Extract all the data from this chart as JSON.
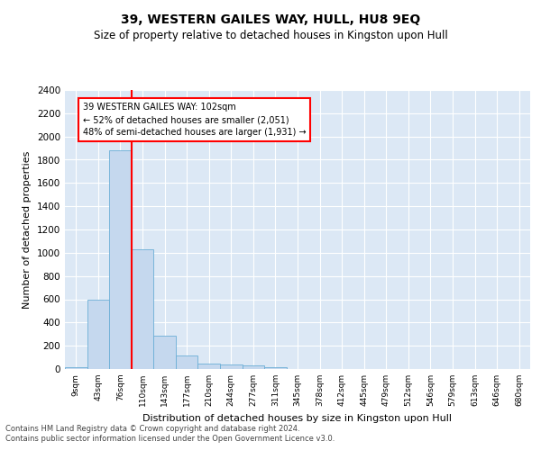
{
  "title": "39, WESTERN GAILES WAY, HULL, HU8 9EQ",
  "subtitle": "Size of property relative to detached houses in Kingston upon Hull",
  "xlabel": "Distribution of detached houses by size in Kingston upon Hull",
  "ylabel": "Number of detached properties",
  "footer_line1": "Contains HM Land Registry data © Crown copyright and database right 2024.",
  "footer_line2": "Contains public sector information licensed under the Open Government Licence v3.0.",
  "bar_labels": [
    "9sqm",
    "43sqm",
    "76sqm",
    "110sqm",
    "143sqm",
    "177sqm",
    "210sqm",
    "244sqm",
    "277sqm",
    "311sqm",
    "345sqm",
    "378sqm",
    "412sqm",
    "445sqm",
    "479sqm",
    "512sqm",
    "546sqm",
    "579sqm",
    "613sqm",
    "646sqm",
    "680sqm"
  ],
  "bar_values": [
    18,
    600,
    1880,
    1030,
    290,
    120,
    50,
    40,
    28,
    18,
    0,
    0,
    0,
    0,
    0,
    0,
    0,
    0,
    0,
    0,
    0
  ],
  "bar_color": "#c5d8ee",
  "bar_edgecolor": "#6baed6",
  "vline_color": "red",
  "annotation_text": "39 WESTERN GAILES WAY: 102sqm\n← 52% of detached houses are smaller (2,051)\n48% of semi-detached houses are larger (1,931) →",
  "annotation_box_color": "white",
  "annotation_box_edgecolor": "red",
  "ylim": [
    0,
    2400
  ],
  "yticks": [
    0,
    200,
    400,
    600,
    800,
    1000,
    1200,
    1400,
    1600,
    1800,
    2000,
    2200,
    2400
  ],
  "plot_background": "#dce8f5",
  "grid_color": "white",
  "title_fontsize": 10,
  "subtitle_fontsize": 8.5,
  "ylabel_fontsize": 8,
  "xlabel_fontsize": 8,
  "footer_fontsize": 6
}
